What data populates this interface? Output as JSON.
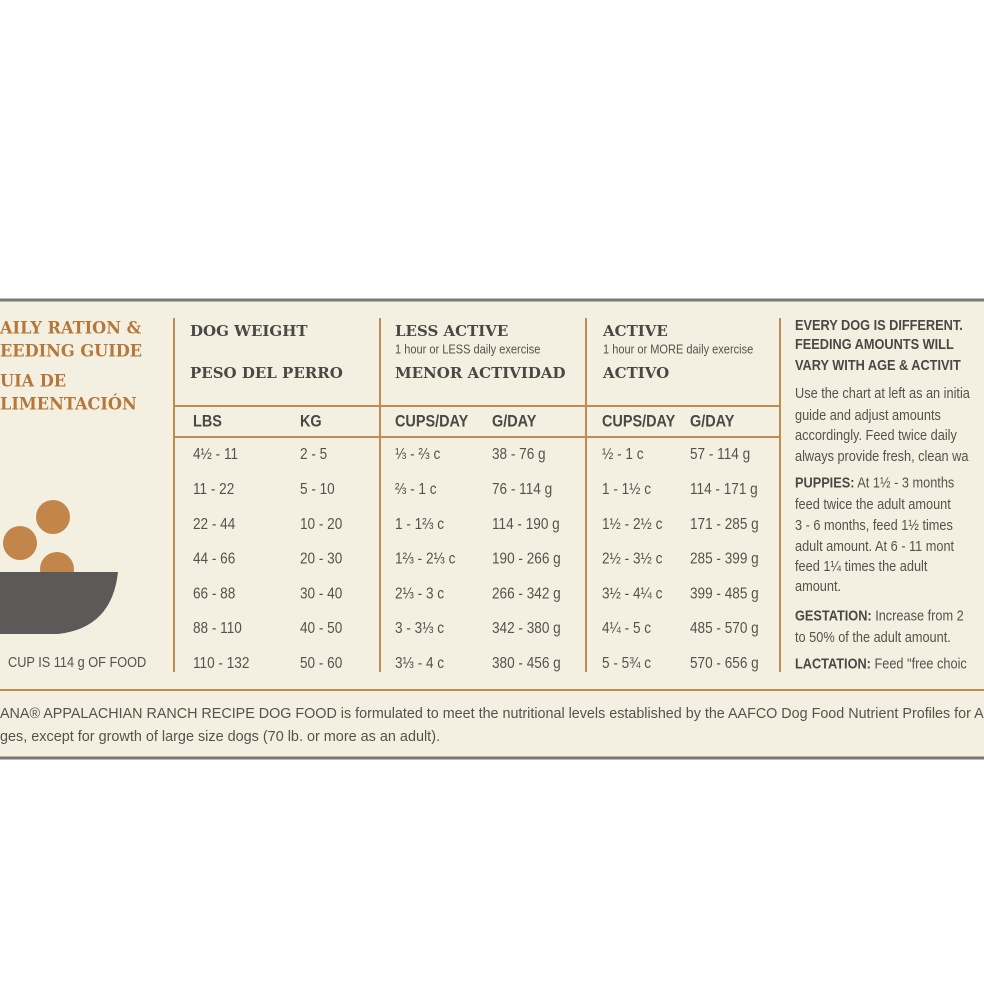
{
  "guide_title": [
    "AILY RATION &",
    "EEDING GUIDE",
    "UIA DE",
    "LIMENTACIÓN"
  ],
  "cup_note": "CUP IS 114 g OF FOOD",
  "columns": [
    {
      "title": "DOG WEIGHT",
      "subtitle": "PESO DEL PERRO"
    },
    {
      "title": "LESS ACTIVE",
      "note": "1 hour or LESS daily exercise",
      "subtitle": "MENOR ACTIVIDAD"
    },
    {
      "title": "ACTIVE",
      "note": "1 hour or MORE daily exercise",
      "subtitle": "ACTIVO"
    }
  ],
  "table": {
    "headers": [
      "LBS",
      "KG",
      "CUPS/DAY",
      "G/DAY",
      "CUPS/DAY",
      "G/DAY"
    ],
    "rows": [
      [
        "4½ - 11",
        "2 - 5",
        "⅓ - ⅔ c",
        "38 - 76 g",
        "½ - 1 c",
        "57 - 114 g"
      ],
      [
        "11 - 22",
        "5 - 10",
        "⅔ - 1 c",
        "76 - 114 g",
        "1 - 1½ c",
        "114 - 171 g"
      ],
      [
        "22 - 44",
        "10 - 20",
        "1 - 1⅔ c",
        "114 - 190 g",
        "1½ - 2½ c",
        "171 - 285 g"
      ],
      [
        "44 - 66",
        "20 - 30",
        "1⅔ - 2⅓ c",
        "190 - 266 g",
        "2½ - 3½ c",
        "285 - 399 g"
      ],
      [
        "66 - 88",
        "30 - 40",
        "2⅓ - 3 c",
        "266 - 342 g",
        "3½ - 4¼ c",
        "399 - 485 g"
      ],
      [
        "88 - 110",
        "40 - 50",
        "3 - 3⅓ c",
        "342 - 380 g",
        "4¼ - 5 c",
        "485 - 570 g"
      ],
      [
        "110 - 132",
        "50 - 60",
        "3⅓ - 4 c",
        "380 - 456 g",
        "5 - 5¾ c",
        "570 - 656 g"
      ]
    ]
  },
  "side": {
    "heading": [
      "EVERY DOG IS DIFFERENT.",
      "FEEDING AMOUNTS WILL",
      "VARY WITH AGE & ACTIVIT"
    ],
    "intro": [
      "Use the chart at left as an initia",
      "guide and adjust amounts",
      "accordingly. Feed twice daily",
      "always provide fresh, clean wa"
    ],
    "puppies": {
      "label": "PUPPIES:",
      "lines": [
        "At 1½ - 3 months",
        "feed twice the adult amount",
        "3 - 6 months, feed 1½ times",
        "adult amount. At 6 - 11 mont",
        "feed 1¼ times the adult",
        "amount."
      ]
    },
    "gestation": {
      "label": "GESTATION:",
      "lines": [
        "Increase from 2",
        "to 50% of the adult amount."
      ]
    },
    "lactation": {
      "label": "LACTATION:",
      "lines": [
        "Feed \"free choic"
      ]
    }
  },
  "footer": [
    "ANA® APPALACHIAN RANCH RECIPE DOG FOOD is formulated to meet the nutritional levels established by the AAFCO Dog Food Nutrient Profiles for All",
    "ges, except for growth of large size dogs (70 lb. or more as an adult)."
  ]
}
